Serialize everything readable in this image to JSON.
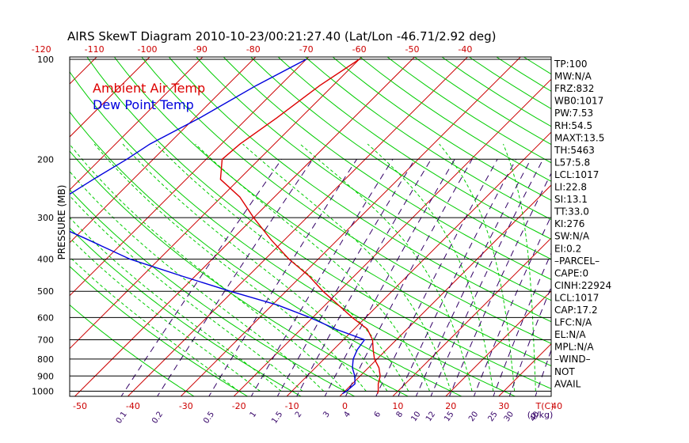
{
  "chart_data": {
    "type": "line",
    "title": "AIRS SkewT Diagram 2010-10-23/00:21:27.40 (Lat/Lon -46.71/2.92 deg)",
    "ylabel": "PRESSURE (MB)",
    "pressure_ticks": [
      100,
      200,
      300,
      400,
      500,
      600,
      700,
      800,
      900,
      1000
    ],
    "bottom_temp_ticks": [
      -50,
      -40,
      -30,
      -20,
      -10,
      0,
      10,
      20,
      30,
      40
    ],
    "top_temp_ticks": [
      -120,
      -110,
      -100,
      -90,
      -80,
      -70,
      -60,
      -50,
      -40
    ],
    "bottom_unit_label": "T(C)",
    "mixing_ratio_labels": [
      "0.1",
      "0.2",
      "0.5",
      "1",
      "1.5",
      "2",
      "3",
      "4",
      "6",
      "8",
      "10",
      "12",
      "15",
      "20",
      "25",
      "30",
      "40"
    ],
    "mixing_ratio_unit": "g/kg",
    "legend": [
      {
        "label": "Ambient Air Temp",
        "color": "#dd0000"
      },
      {
        "label": "Dew Point Temp",
        "color": "#0000dd"
      }
    ],
    "series": [
      {
        "name": "Ambient Air Temp",
        "color": "#dd0000",
        "points": [
          {
            "p": 100,
            "t": -60.0
          },
          {
            "p": 120,
            "t": -62.5
          },
          {
            "p": 150,
            "t": -64.5
          },
          {
            "p": 180,
            "t": -66.5
          },
          {
            "p": 200,
            "t": -67.0
          },
          {
            "p": 230,
            "t": -63.5
          },
          {
            "p": 260,
            "t": -56.5
          },
          {
            "p": 300,
            "t": -50.0
          },
          {
            "p": 350,
            "t": -42.5
          },
          {
            "p": 400,
            "t": -35.5
          },
          {
            "p": 450,
            "t": -28.5
          },
          {
            "p": 500,
            "t": -23.0
          },
          {
            "p": 550,
            "t": -17.5
          },
          {
            "p": 600,
            "t": -12.5
          },
          {
            "p": 650,
            "t": -7.5
          },
          {
            "p": 700,
            "t": -4.5
          },
          {
            "p": 750,
            "t": -2.5
          },
          {
            "p": 800,
            "t": -0.5
          },
          {
            "p": 850,
            "t": 2.0
          },
          {
            "p": 900,
            "t": 3.8
          },
          {
            "p": 950,
            "t": 4.9
          },
          {
            "p": 1000,
            "t": 6.3
          },
          {
            "p": 1017,
            "t": 6.6
          }
        ]
      },
      {
        "name": "Dew Point Temp",
        "color": "#0000dd",
        "points": [
          {
            "p": 100,
            "t": -70.0
          },
          {
            "p": 120,
            "t": -74.5
          },
          {
            "p": 150,
            "t": -79.0
          },
          {
            "p": 180,
            "t": -83.5
          },
          {
            "p": 200,
            "t": -85.0
          },
          {
            "p": 230,
            "t": -87.5
          },
          {
            "p": 260,
            "t": -89.5
          },
          {
            "p": 300,
            "t": -90.5
          },
          {
            "p": 350,
            "t": -77.0
          },
          {
            "p": 400,
            "t": -65.5
          },
          {
            "p": 450,
            "t": -52.5
          },
          {
            "p": 500,
            "t": -40.5
          },
          {
            "p": 550,
            "t": -29.0
          },
          {
            "p": 600,
            "t": -20.5
          },
          {
            "p": 650,
            "t": -13.5
          },
          {
            "p": 700,
            "t": -6.0
          },
          {
            "p": 750,
            "t": -5.5
          },
          {
            "p": 800,
            "t": -4.5
          },
          {
            "p": 850,
            "t": -3.0
          },
          {
            "p": 900,
            "t": -1.0
          },
          {
            "p": 950,
            "t": 0.5
          },
          {
            "p": 1000,
            "t": 0.3
          },
          {
            "p": 1017,
            "t": 0.0
          }
        ]
      }
    ],
    "indices": [
      "TP:100",
      "MW:N/A",
      "FRZ:832",
      "WB0:1017",
      "PW:7.53",
      "RH:54.5",
      "MAXT:13.5",
      "TH:5463",
      "L57:5.8",
      "LCL:1017",
      "LI:22.8",
      "SI:13.1",
      "TT:33.0",
      "KI:276",
      "SW:N/A",
      "EI:0.2",
      "–PARCEL–",
      "CAPE:0",
      "CINH:22924",
      "LCL:1017",
      "CAP:17.2",
      "LFC:N/A",
      "EL:N/A",
      "MPL:N/A",
      "–WIND–",
      "NOT",
      "AVAIL"
    ],
    "colors": {
      "temperature": "#dd0000",
      "dewpoint": "#0000dd",
      "isotherms": "#cc0000",
      "dry_adiabats": "#00cc00",
      "moist_adiabats": "#00cc00",
      "mixing_ratio": "#330066",
      "isobars": "#000000"
    }
  }
}
